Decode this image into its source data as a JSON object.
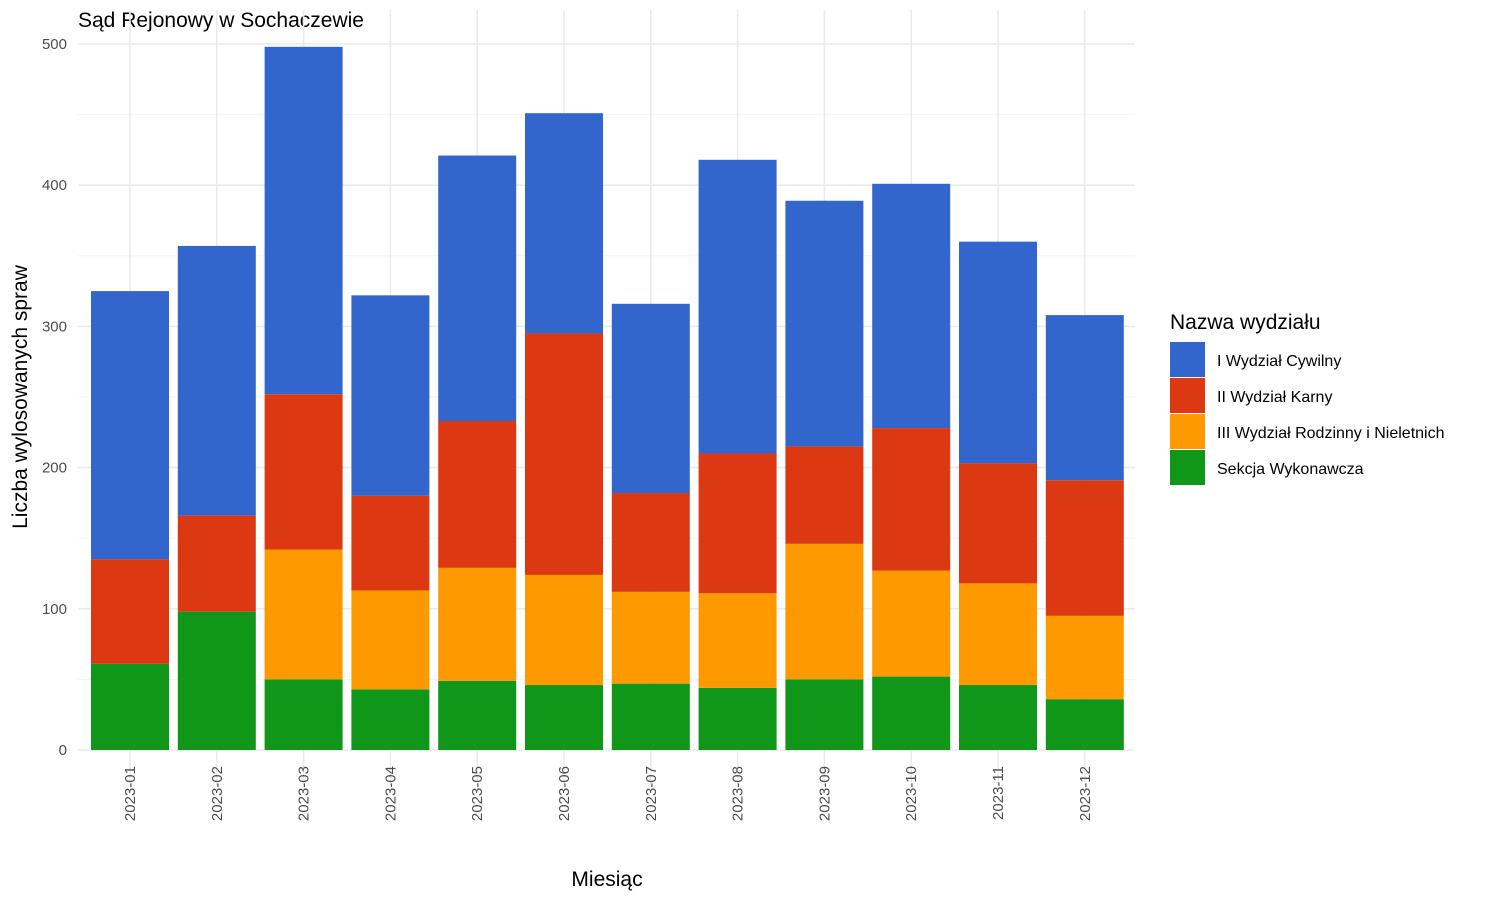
{
  "chart_data": {
    "type": "bar",
    "stacked": true,
    "title": "Sąd Rejonowy w Sochaczewie",
    "xlabel": "Miesiąc",
    "ylabel": "Liczba wylosowanych spraw",
    "ylim": [
      0,
      500
    ],
    "yticks": [
      0,
      100,
      200,
      300,
      400,
      500
    ],
    "grid": true,
    "legend_title": "Nazwa wydziału",
    "legend_position": "right",
    "categories": [
      "2023-01",
      "2023-02",
      "2023-03",
      "2023-04",
      "2023-05",
      "2023-06",
      "2023-07",
      "2023-08",
      "2023-09",
      "2023-10",
      "2023-11",
      "2023-12"
    ],
    "series": [
      {
        "name": "I Wydział Cywilny",
        "color": "#3366cc",
        "values": [
          190,
          191,
          246,
          142,
          188,
          156,
          134,
          208,
          174,
          173,
          157,
          117
        ]
      },
      {
        "name": "II Wydział Karny",
        "color": "#dc3912",
        "values": [
          74,
          68,
          110,
          67,
          104,
          171,
          70,
          99,
          69,
          101,
          85,
          96
        ]
      },
      {
        "name": "III Wydział Rodzinny i Nieletnich",
        "color": "#ff9900",
        "values": [
          0,
          0,
          92,
          70,
          80,
          78,
          65,
          67,
          96,
          75,
          72,
          59
        ]
      },
      {
        "name": "Sekcja Wykonawcza",
        "color": "#109618",
        "values": [
          61,
          98,
          50,
          43,
          49,
          46,
          47,
          44,
          50,
          52,
          46,
          36
        ]
      }
    ]
  }
}
